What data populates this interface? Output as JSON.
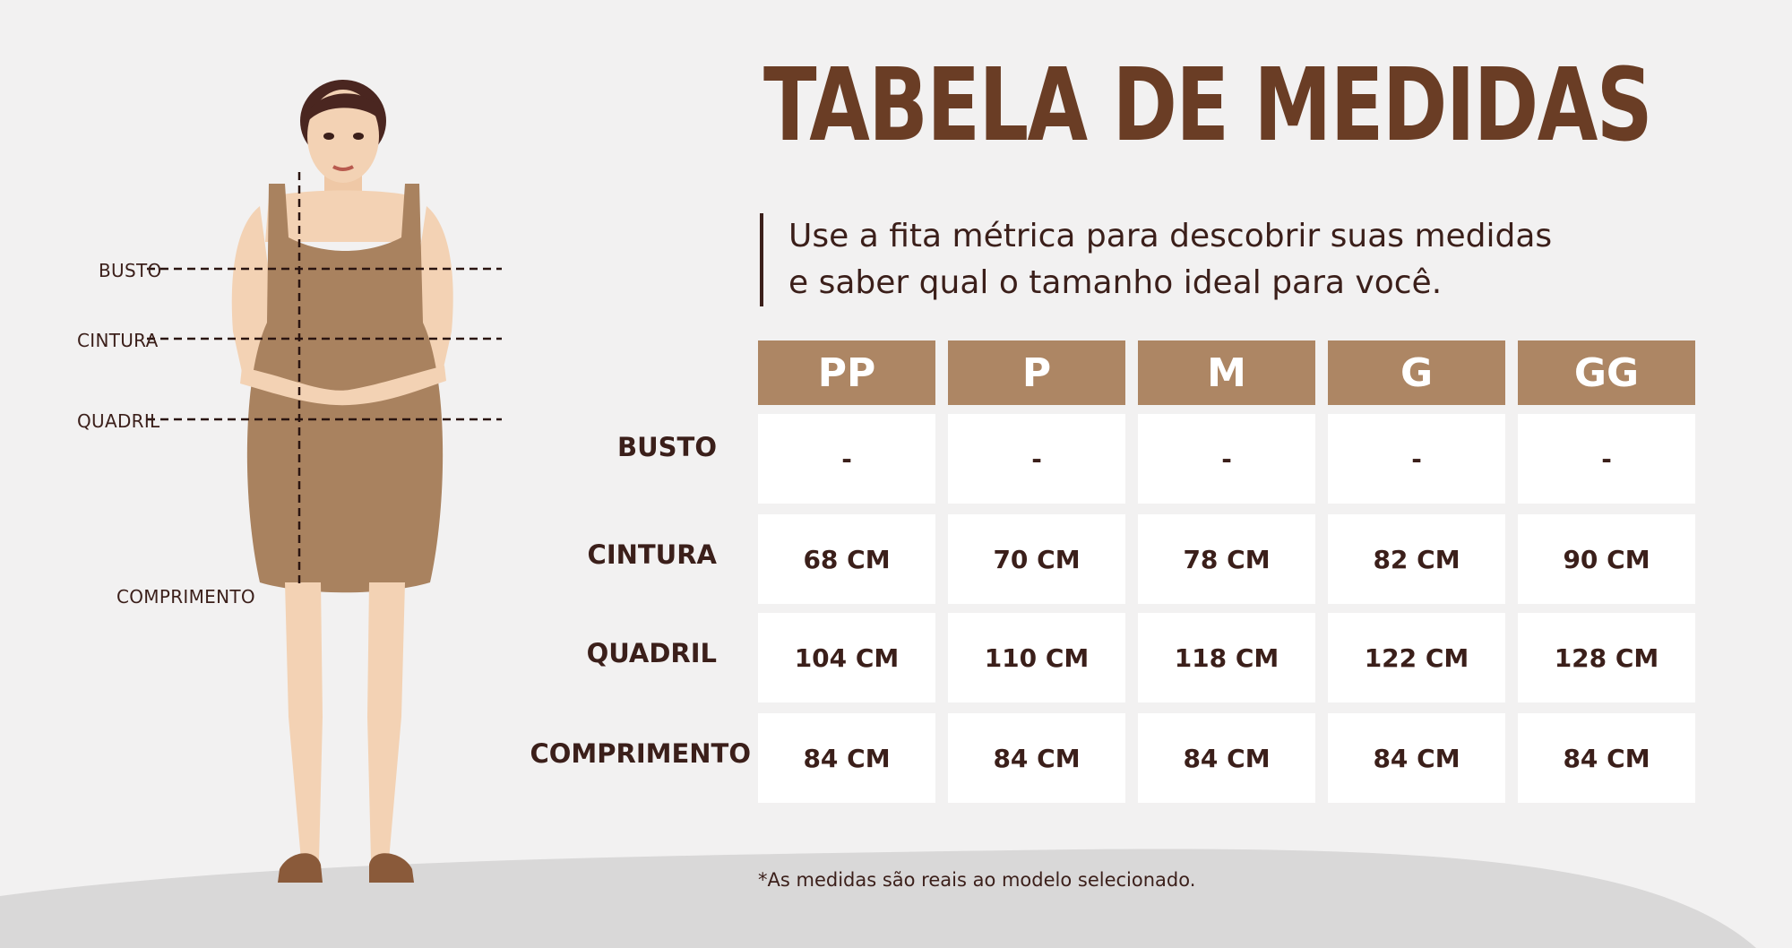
{
  "title": "TABELA DE MEDIDAS",
  "subtitle_lines": [
    "Use a fita métrica para descobrir suas medidas",
    "e saber qual o tamanho ideal para você."
  ],
  "figure_labels": {
    "busto": "BUSTO",
    "cintura": "CINTURA",
    "quadril": "QUADRIL",
    "comprimento": "COMPRIMENTO"
  },
  "table": {
    "sizes": [
      "PP",
      "P",
      "M",
      "G",
      "GG"
    ],
    "rows": [
      {
        "label": "BUSTO",
        "values": [
          "-",
          "-",
          "-",
          "-",
          "-"
        ]
      },
      {
        "label": "CINTURA",
        "values": [
          "68 CM",
          "70 CM",
          "78 CM",
          "82 CM",
          "90 CM"
        ]
      },
      {
        "label": "QUADRIL",
        "values": [
          "104 CM",
          "110 CM",
          "118 CM",
          "122 CM",
          "128 CM"
        ]
      },
      {
        "label": "COMPRIMENTO",
        "values": [
          "84 CM",
          "84 CM",
          "84 CM",
          "84 CM",
          "84 CM"
        ]
      }
    ]
  },
  "footnote": "*As medidas são reais ao modelo selecionado.",
  "colors": {
    "background": "#f2f1f1",
    "ground": "#d9d8d8",
    "header": "#ad8664",
    "title": "#6a3d25",
    "text": "#3b1f1a",
    "dress": "#a9825f",
    "skin": "#f3d2b4"
  }
}
